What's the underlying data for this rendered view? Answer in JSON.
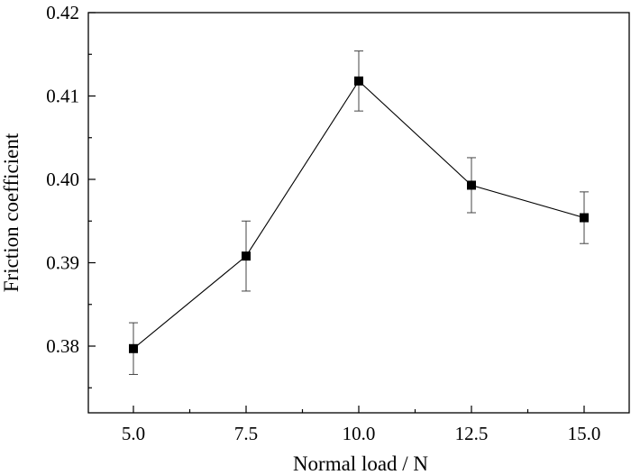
{
  "chart_data": {
    "type": "line",
    "xlabel": "Normal load / N",
    "ylabel": "Friction coefficient",
    "xlim": [
      4.0,
      16.0
    ],
    "ylim": [
      0.372,
      0.42
    ],
    "xticks": [
      "5.0",
      "7.5",
      "10.0",
      "12.5",
      "15.0"
    ],
    "yticks": [
      "0.38",
      "0.39",
      "0.40",
      "0.41",
      "0.42"
    ],
    "series": [
      {
        "x": [
          5.0,
          7.5,
          10.0,
          12.5,
          15.0
        ],
        "y": [
          0.3797,
          0.3908,
          0.4118,
          0.3993,
          0.3954
        ],
        "err": [
          0.0031,
          0.0042,
          0.0036,
          0.0033,
          0.0031
        ]
      }
    ],
    "marker": "square",
    "color": "#000000",
    "grid": false
  }
}
